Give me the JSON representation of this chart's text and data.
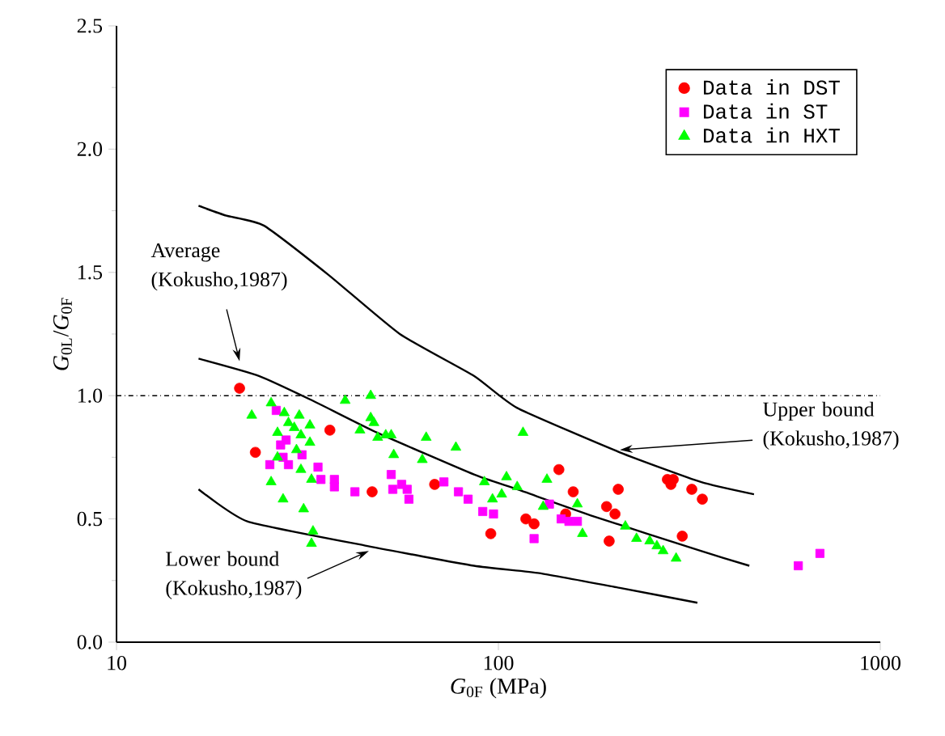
{
  "chart_data": {
    "type": "scatter",
    "xlabel": "*G*$_{0F}$ (MPa)",
    "ylabel": "*G*$_{0L}$/*G*$_{0F}$",
    "log": "x",
    "legend": "top right",
    "grid": false,
    "xlim": [
      10,
      1000
    ],
    "xticks": [
      10,
      100,
      1000
    ],
    "ylim": [
      0,
      2.5
    ],
    "yticks": [
      {
        "value": 0,
        "label": "0.0"
      },
      {
        "value": 0.5,
        "label": "0.5"
      },
      {
        "value": 1,
        "label": "1.0"
      },
      {
        "value": 1.5,
        "label": "1.5"
      },
      {
        "value": 2,
        "label": "2.0"
      },
      {
        "value": 2.5,
        "label": "2.5"
      }
    ],
    "ref_lines": [
      {
        "axis": "y",
        "value": 1,
        "color": "#000000",
        "line_style": "dashdot"
      }
    ],
    "annotations": [
      {
        "text": "Average (Kokusho,1987)",
        "x": 21.0,
        "y": 1.14
      },
      {
        "text": "Upper bound (Kokusho,1987)",
        "x": 208,
        "y": 0.78
      },
      {
        "text": "Lower bound (Kokusho,1987)",
        "x": 45.8,
        "y": 0.37
      }
    ],
    "series": [
      {
        "name": "Data in DST",
        "type": "scatter",
        "marker": "circle",
        "color": "#ff0000",
        "x": [
          21.0,
          23.1,
          36.2,
          46.7,
          68.1,
          95.5,
          118,
          124,
          144,
          150,
          157,
          192,
          202,
          206,
          195,
          277,
          287,
          283,
          321,
          342,
          303
        ],
        "values": [
          1.03,
          0.77,
          0.86,
          0.61,
          0.64,
          0.44,
          0.5,
          0.48,
          0.7,
          0.52,
          0.61,
          0.55,
          0.52,
          0.62,
          0.41,
          0.66,
          0.66,
          0.64,
          0.62,
          0.58,
          0.43
        ]
      },
      {
        "name": "Data in ST",
        "type": "scatter",
        "marker": "square",
        "color": "#ff00ff",
        "x": [
          26.2,
          26.9,
          27.8,
          25.2,
          27.3,
          28.2,
          30.6,
          33.7,
          34.3,
          37.2,
          37.2,
          42.1,
          52.4,
          52.9,
          55.8,
          57.7,
          58.3,
          72.0,
          78.6,
          83.3,
          91.0,
          97.1,
          124,
          136,
          146,
          153,
          161,
          610,
          695
        ],
        "values": [
          0.94,
          0.8,
          0.82,
          0.72,
          0.75,
          0.72,
          0.76,
          0.71,
          0.66,
          0.66,
          0.63,
          0.61,
          0.68,
          0.62,
          0.64,
          0.62,
          0.58,
          0.65,
          0.61,
          0.58,
          0.53,
          0.52,
          0.42,
          0.56,
          0.5,
          0.49,
          0.49,
          0.31,
          0.36
        ]
      },
      {
        "name": "Data in HXT",
        "type": "scatter",
        "marker": "triangle",
        "color": "#00ff00",
        "x": [
          22.6,
          25.4,
          26.4,
          27.5,
          28.2,
          30.1,
          29.2,
          30.4,
          32.1,
          32.1,
          29.6,
          26.4,
          30.4,
          32.4,
          25.4,
          27.3,
          30.9,
          32.7,
          32.4,
          39.7,
          46.3,
          43.4,
          46.3,
          47.2,
          48.3,
          50.7,
          52.4,
          53.2,
          64.7,
          63.2,
          77.4,
          91.9,
          96.5,
          105,
          102,
          112,
          116,
          134,
          131,
          161,
          166,
          215,
          230,
          249,
          260,
          270,
          292
        ],
        "values": [
          0.92,
          0.97,
          0.85,
          0.93,
          0.89,
          0.92,
          0.87,
          0.84,
          0.88,
          0.81,
          0.78,
          0.75,
          0.7,
          0.66,
          0.65,
          0.58,
          0.54,
          0.45,
          0.4,
          0.98,
          1.0,
          0.86,
          0.91,
          0.89,
          0.83,
          0.84,
          0.84,
          0.76,
          0.83,
          0.74,
          0.79,
          0.65,
          0.58,
          0.67,
          0.6,
          0.63,
          0.85,
          0.66,
          0.55,
          0.56,
          0.44,
          0.47,
          0.42,
          0.41,
          0.39,
          0.37,
          0.34
        ]
      },
      {
        "type": "line",
        "color": "#000000",
        "x": [
          16.4,
          19.4,
          24.3,
          35.9,
          55.2,
          86.3,
          112,
          208,
          339,
          467
        ],
        "values": [
          1.77,
          1.73,
          1.69,
          1.49,
          1.25,
          1.08,
          0.95,
          0.77,
          0.65,
          0.6
        ]
      },
      {
        "type": "line",
        "color": "#000000",
        "x": [
          16.4,
          23.6,
          32.6,
          48.1,
          86.3,
          112,
          178,
          339,
          454
        ],
        "values": [
          1.15,
          1.08,
          0.98,
          0.85,
          0.68,
          0.62,
          0.51,
          0.37,
          0.31
        ]
      },
      {
        "type": "line",
        "color": "#000000",
        "x": [
          16.4,
          22.0,
          45.4,
          86.3,
          128,
          208,
          332
        ],
        "values": [
          0.62,
          0.49,
          0.39,
          0.31,
          0.28,
          0.22,
          0.16
        ]
      }
    ]
  }
}
